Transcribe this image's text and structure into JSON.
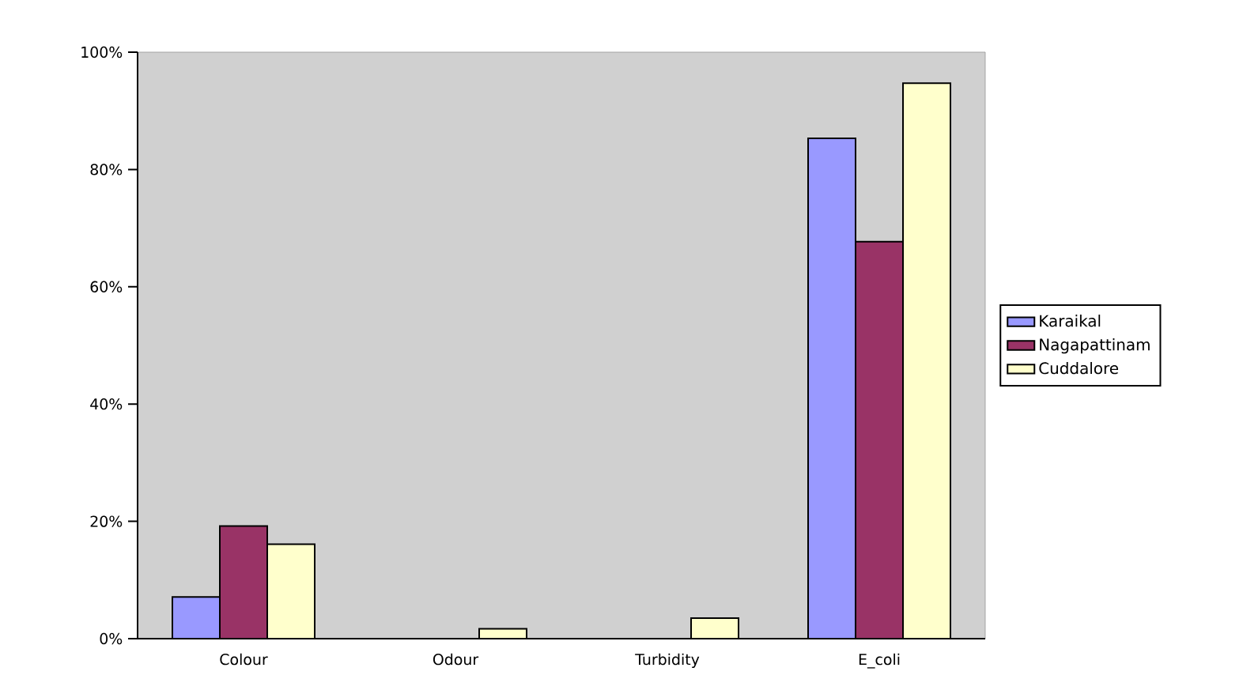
{
  "chart_data": {
    "type": "bar",
    "categories": [
      "Colour",
      "Odour",
      "Turbidity",
      "E_coli"
    ],
    "series": [
      {
        "name": "Karaikal",
        "color": "#9999ff",
        "values": [
          7.1,
          0,
          0,
          85.3
        ]
      },
      {
        "name": "Nagapattinam",
        "color": "#993366",
        "values": [
          19.2,
          0,
          0,
          67.7
        ]
      },
      {
        "name": "Cuddalore",
        "color": "#ffffcc",
        "values": [
          16.1,
          1.7,
          3.5,
          94.7
        ]
      }
    ],
    "ylim": [
      0,
      100
    ],
    "yticks": [
      {
        "value": 0,
        "label": "0%"
      },
      {
        "value": 20,
        "label": "20%"
      },
      {
        "value": 40,
        "label": "40%"
      },
      {
        "value": 60,
        "label": "60%"
      },
      {
        "value": 80,
        "label": "80%"
      },
      {
        "value": 100,
        "label": "100%"
      }
    ],
    "legend": "right"
  }
}
